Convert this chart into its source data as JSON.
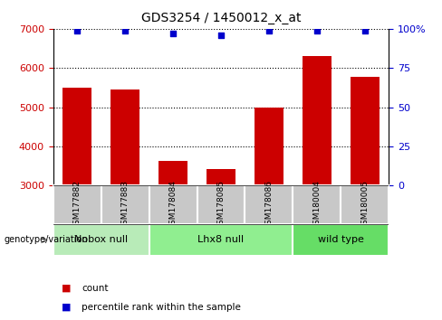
{
  "title": "GDS3254 / 1450012_x_at",
  "samples": [
    "GSM177882",
    "GSM177883",
    "GSM178084",
    "GSM178085",
    "GSM178086",
    "GSM180004",
    "GSM180005"
  ],
  "counts": [
    5500,
    5450,
    3620,
    3420,
    5000,
    6300,
    5780
  ],
  "percentile_ranks": [
    99,
    99,
    97,
    96,
    99,
    99,
    99
  ],
  "ymin": 3000,
  "ymax": 7000,
  "yticks": [
    3000,
    4000,
    5000,
    6000,
    7000
  ],
  "right_ytick_vals": [
    0,
    25,
    50,
    75,
    100
  ],
  "right_ytick_labels": [
    "0",
    "25",
    "50",
    "75",
    "100%"
  ],
  "bar_color": "#cc0000",
  "dot_color": "#0000cc",
  "sample_bg_color": "#c8c8c8",
  "nobox_null_color": "#b8ebb8",
  "lhx8_null_color": "#90ee90",
  "wild_type_color": "#66dd66",
  "ylabel_left_color": "#cc0000",
  "ylabel_right_color": "#0000cc",
  "groups": [
    {
      "label": "Nobox null",
      "start": 0,
      "end": 1
    },
    {
      "label": "Lhx8 null",
      "start": 2,
      "end": 4
    },
    {
      "label": "wild type",
      "start": 5,
      "end": 6
    }
  ]
}
